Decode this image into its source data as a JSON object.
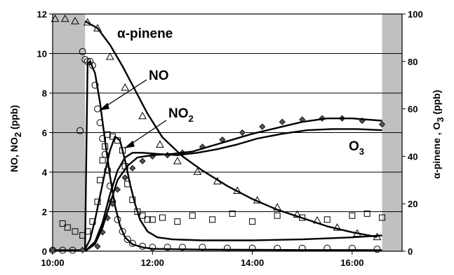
{
  "chart_data": {
    "type": "scatter",
    "x_axis": {
      "min": 10.0,
      "max": 17.0,
      "ticks": [
        10,
        12,
        14,
        16
      ],
      "tick_labels": [
        "10:00",
        "12:00",
        "14:00",
        "16:00"
      ]
    },
    "y_left": {
      "min": 0,
      "max": 12,
      "ticks": [
        0,
        2,
        4,
        6,
        8,
        10,
        12
      ],
      "label_base": "NO, NO",
      "label_sub": "2",
      "label_unit": " (ppb)"
    },
    "y_right": {
      "min": 0,
      "max": 100,
      "ticks": [
        0,
        20,
        40,
        60,
        80,
        100
      ],
      "label_greek": "α",
      "label_mid": "-pinene , O",
      "label_sub": "3",
      "label_unit": " (ppb)"
    },
    "grid": "horizontal",
    "shaded_periods": [
      {
        "start": 10.0,
        "end": 10.65
      },
      {
        "start": 16.6,
        "end": 17.0
      }
    ],
    "annotations": {
      "pinene": {
        "greek": "α",
        "text": "-pinene"
      },
      "no": {
        "text": "NO"
      },
      "no2": {
        "base": "NO",
        "sub": "2"
      },
      "o3": {
        "base": "O",
        "sub": "3"
      }
    },
    "series": [
      {
        "key": "pinene_obs",
        "axis": "right",
        "marker": "triangle",
        "kind": "observed",
        "x": [
          10.05,
          10.25,
          10.45,
          10.7,
          10.9,
          11.15,
          11.45,
          11.8,
          12.15,
          12.5,
          12.9,
          13.3,
          13.7,
          14.1,
          14.5,
          14.9,
          15.3,
          15.7,
          16.1,
          16.5
        ],
        "y": [
          98,
          98,
          97,
          96.5,
          94,
          82,
          69,
          57,
          45,
          38,
          33.5,
          29.5,
          25.5,
          21.5,
          18.5,
          15.5,
          13,
          10,
          7.5,
          6
        ]
      },
      {
        "key": "pinene_model",
        "axis": "right",
        "marker": "line",
        "kind": "model",
        "x": [
          10.65,
          10.9,
          11.15,
          11.4,
          11.65,
          11.9,
          12.2,
          12.6,
          13.0,
          13.5,
          14.0,
          14.5,
          15.0,
          15.5,
          16.0,
          16.5
        ],
        "y": [
          97,
          94,
          87,
          78,
          68,
          58,
          48,
          40,
          34,
          27.5,
          22,
          17.5,
          14,
          10.5,
          8,
          6
        ]
      },
      {
        "key": "no_obs",
        "axis": "left",
        "marker": "circle",
        "kind": "observed",
        "x": [
          10.0,
          10.2,
          10.4,
          10.55,
          10.6,
          10.65,
          10.7,
          10.75,
          10.8,
          10.85,
          10.9,
          10.95,
          11.0,
          11.05,
          11.1,
          11.15,
          11.2,
          11.3,
          11.4,
          11.5,
          11.6,
          11.8,
          12.0,
          12.3,
          12.6,
          13.0,
          13.5,
          14.0,
          14.5,
          15.0,
          15.5,
          16.0,
          16.5
        ],
        "y": [
          0.05,
          0.05,
          0.05,
          6.1,
          10.1,
          9.7,
          9.6,
          9.6,
          9.4,
          8.4,
          7.2,
          6.5,
          5.7,
          4.9,
          4.1,
          3.3,
          2.5,
          1.6,
          1.0,
          0.6,
          0.4,
          0.25,
          0.2,
          0.2,
          0.2,
          0.2,
          0.15,
          0.15,
          0.15,
          0.15,
          0.15,
          0.15,
          0.1
        ]
      },
      {
        "key": "no_model",
        "axis": "left",
        "marker": "line",
        "kind": "model",
        "x": [
          10.0,
          10.65,
          10.7,
          10.75,
          10.85,
          10.95,
          11.05,
          11.15,
          11.25,
          11.35,
          11.45,
          11.6,
          11.8,
          12.0,
          12.5,
          13.0,
          14.0,
          15.0,
          16.0,
          16.6
        ],
        "y": [
          0.05,
          0.05,
          9.5,
          9.6,
          9.0,
          7.5,
          5.6,
          3.8,
          2.3,
          1.3,
          0.7,
          0.35,
          0.2,
          0.12,
          0.1,
          0.08,
          0.07,
          0.06,
          0.06,
          0.05
        ]
      },
      {
        "key": "no2_obs",
        "axis": "left",
        "marker": "square",
        "kind": "observed",
        "x": [
          10.2,
          10.3,
          10.45,
          10.6,
          10.7,
          10.8,
          10.9,
          10.95,
          11.0,
          11.05,
          11.1,
          11.2,
          11.3,
          11.4,
          11.45,
          11.5,
          11.6,
          11.7,
          11.8,
          11.9,
          12.0,
          12.2,
          12.5,
          12.8,
          13.2,
          13.6,
          14.0,
          14.5,
          15.0,
          15.5,
          16.0,
          16.3,
          16.6
        ],
        "y": [
          1.4,
          1.2,
          1.0,
          0.8,
          1.0,
          1.5,
          2.5,
          3.6,
          4.6,
          5.3,
          5.9,
          5.8,
          5.6,
          5.1,
          4.3,
          3.4,
          2.6,
          2.0,
          1.8,
          1.6,
          1.6,
          1.7,
          1.5,
          1.8,
          1.6,
          1.9,
          1.5,
          1.8,
          1.7,
          1.6,
          1.8,
          1.9,
          1.7
        ]
      },
      {
        "key": "no2_model",
        "axis": "left",
        "marker": "line",
        "kind": "model",
        "x": [
          10.65,
          10.75,
          10.85,
          10.95,
          11.05,
          11.15,
          11.25,
          11.35,
          11.45,
          11.55,
          11.65,
          11.75,
          11.9,
          12.1,
          12.4,
          13.0,
          14.0,
          15.0,
          16.0,
          16.6
        ],
        "y": [
          0.1,
          0.6,
          1.6,
          2.8,
          4.0,
          5.1,
          5.8,
          5.6,
          4.6,
          3.4,
          2.4,
          1.6,
          1.0,
          0.7,
          0.6,
          0.55,
          0.55,
          0.6,
          0.7,
          0.8
        ]
      },
      {
        "key": "o3_obs",
        "axis": "right",
        "marker": "diamond",
        "kind": "observed",
        "x": [
          10.0,
          10.6,
          10.9,
          11.0,
          11.1,
          11.2,
          11.3,
          11.45,
          11.6,
          11.8,
          12.0,
          12.3,
          12.6,
          13.0,
          13.4,
          13.8,
          14.2,
          14.6,
          15.0,
          15.4,
          15.8,
          16.2,
          16.6
        ],
        "y": [
          0.5,
          0.5,
          2,
          8,
          14,
          20,
          26,
          31,
          35,
          38,
          40,
          40.5,
          41.5,
          44,
          47,
          50,
          52.5,
          54.5,
          55.5,
          56,
          56,
          55,
          53.5
        ]
      },
      {
        "key": "o3_model_a",
        "axis": "right",
        "marker": "line",
        "kind": "model",
        "x": [
          10.65,
          10.85,
          11.0,
          11.15,
          11.3,
          11.5,
          11.7,
          12.0,
          12.4,
          12.8,
          13.2,
          13.6,
          14.0,
          14.5,
          15.0,
          15.5,
          16.0,
          16.6
        ],
        "y": [
          0,
          3,
          10,
          20,
          30,
          36,
          39.5,
          40.5,
          41,
          42,
          44.5,
          47,
          49.5,
          52,
          54.5,
          56,
          56,
          55
        ]
      },
      {
        "key": "o3_model_b",
        "axis": "right",
        "marker": "line",
        "kind": "model",
        "x": [
          10.65,
          10.85,
          11.0,
          11.15,
          11.3,
          11.45,
          11.6,
          11.8,
          12.1,
          12.5,
          12.9,
          13.3,
          13.7,
          14.1,
          14.6,
          15.1,
          15.6,
          16.1,
          16.6
        ],
        "y": [
          0,
          4,
          12,
          24,
          34,
          39.5,
          41.5,
          41.5,
          41,
          40.5,
          41.5,
          43,
          45,
          47.5,
          49.5,
          51,
          51.5,
          51.5,
          51
        ]
      }
    ]
  }
}
